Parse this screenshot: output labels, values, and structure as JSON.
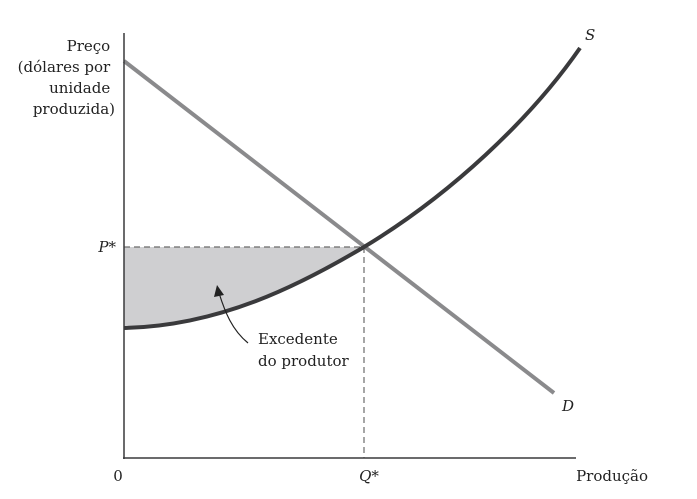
{
  "diagram": {
    "y_axis_label_lines": [
      "Preço",
      "(dólares por",
      "unidade",
      "produzida)"
    ],
    "x_axis_label": "Produção",
    "origin_label": "0",
    "price_label": "P*",
    "quantity_label": "Q*",
    "supply_label": "S",
    "demand_label": "D",
    "annotation_lines": [
      "Excedente",
      "do produtor"
    ]
  },
  "colors": {
    "supply_curve": "#3a3a3c",
    "demand_curve": "#8a8a8c",
    "shaded_area": "#cfcfd1",
    "axes": "#3a3a3c",
    "dashed_guides": "#6a6a6a"
  }
}
